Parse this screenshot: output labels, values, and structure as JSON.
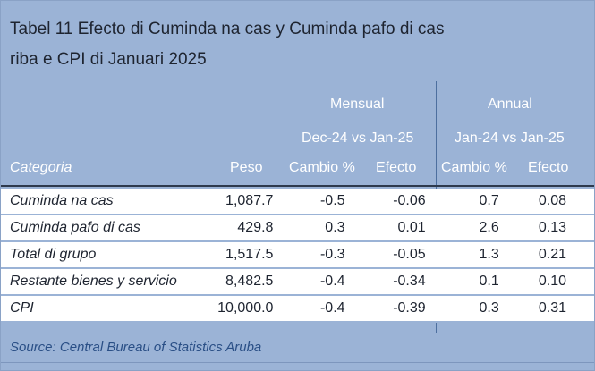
{
  "title_line1": "Tabel 11 Efecto di Cuminda na cas y Cuminda pafo di cas",
  "title_line2": "riba e CPI di Januari 2025",
  "groups": {
    "mensual": {
      "label": "Mensual",
      "period": "Dec-24 vs Jan-25"
    },
    "annual": {
      "label": "Annual",
      "period": "Jan-24 vs Jan-25"
    }
  },
  "columns": [
    "Categoria",
    "Peso",
    "Cambio %",
    "Efecto",
    "Cambio %",
    "Efecto"
  ],
  "rows": [
    {
      "categoria": "Cuminda na cas",
      "peso": "1,087.7",
      "m_cambio": "-0.5",
      "m_efecto": "-0.06",
      "a_cambio": "0.7",
      "a_efecto": "0.08"
    },
    {
      "categoria": "Cuminda pafo di cas",
      "peso": "429.8",
      "m_cambio": "0.3",
      "m_efecto": "0.01",
      "a_cambio": "2.6",
      "a_efecto": "0.13"
    },
    {
      "categoria": "Total di grupo",
      "peso": "1,517.5",
      "m_cambio": "-0.3",
      "m_efecto": "-0.05",
      "a_cambio": "1.3",
      "a_efecto": "0.21"
    },
    {
      "categoria": "Restante bienes y servicio",
      "peso": "8,482.5",
      "m_cambio": "-0.4",
      "m_efecto": "-0.34",
      "a_cambio": "0.1",
      "a_efecto": "0.10"
    },
    {
      "categoria": "CPI",
      "peso": "10,000.0",
      "m_cambio": "-0.4",
      "m_efecto": "-0.39",
      "a_cambio": "0.3",
      "a_efecto": "0.31"
    }
  ],
  "source": "Source: Central Bureau of Statistics Aruba",
  "colors": {
    "panel_bg": "#9bb3d6",
    "header_text": "#ffffff",
    "source_text": "#2a4f86",
    "divider": "#4d6f9f"
  }
}
